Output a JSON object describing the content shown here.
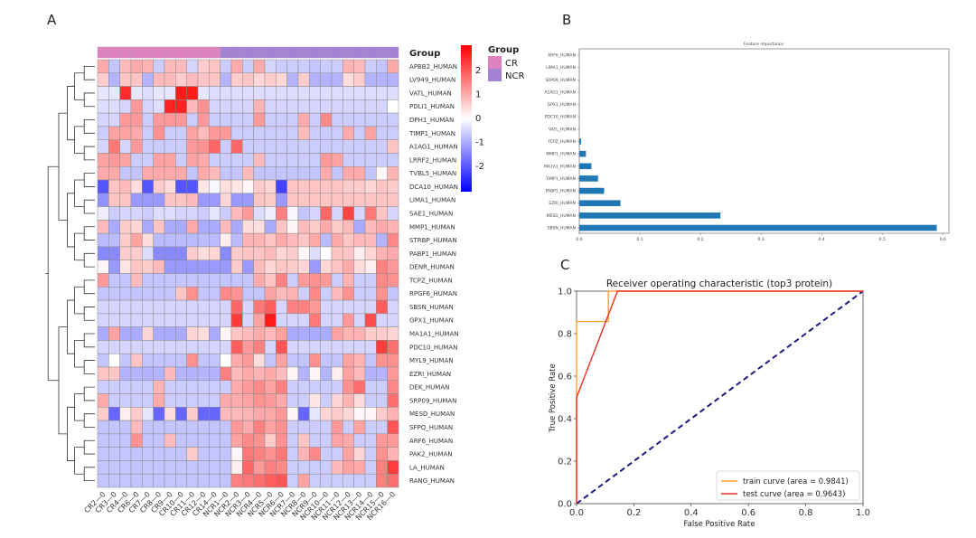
{
  "panels": {
    "a": "A",
    "b": "B",
    "c": "C"
  },
  "chart_data": [
    {
      "type": "heatmap",
      "group_label": "Group",
      "legend": {
        "title": "Group",
        "entries": [
          {
            "name": "CR",
            "color": "#dd82bd"
          },
          {
            "name": "NCR",
            "color": "#a583d3"
          }
        ]
      },
      "colorbar": {
        "ticks": [
          2,
          1,
          0,
          -1,
          -2
        ],
        "low_color": "#0000ff",
        "mid_color": "#ffffff",
        "high_color": "#ff0000"
      },
      "columns": [
        "CR2—0",
        "CR3—0",
        "CR4—0",
        "CR6—0",
        "CR7—0",
        "CR8—0",
        "CR9—0",
        "CR10—0",
        "CR11—0",
        "CR12—0",
        "CR14—0",
        "NCR1—0",
        "NCR2—0",
        "NCR3—0",
        "NCR4—0",
        "NCR5—0",
        "NCR6—0",
        "NCR7—0",
        "NCR8—0",
        "NCR9—0",
        "NCR10—0",
        "NCR11—0",
        "NCR12—0",
        "NCR13—0",
        "NCR14—0",
        "NCR15—0",
        "NCR16—0"
      ],
      "column_groups": [
        "CR",
        "CR",
        "CR",
        "CR",
        "CR",
        "CR",
        "CR",
        "CR",
        "CR",
        "CR",
        "CR",
        "NCR",
        "NCR",
        "NCR",
        "NCR",
        "NCR",
        "NCR",
        "NCR",
        "NCR",
        "NCR",
        "NCR",
        "NCR",
        "NCR",
        "NCR",
        "NCR",
        "NCR",
        "NCR"
      ],
      "rows": [
        "APBB2_HUMAN",
        "LV949_HUMAN",
        "VATL_HUMAN",
        "PDLI1_HUMAN",
        "DPH1_HUMAN",
        "TIMP1_HUMAN",
        "A1AG1_HUMAN",
        "LRRF2_HUMAN",
        "TVBL5_HUMAN",
        "DCA10_HUMAN",
        "LIMA1_HUMAN",
        "SAE1_HUMAN",
        "MMP1_HUMAN",
        "STRBP_HUMAN",
        "PABP1_HUMAN",
        "DENR_HUMAN",
        "TCPZ_HUMAN",
        "RPGF6_HUMAN",
        "SBSN_HUMAN",
        "GPX1_HUMAN",
        "MA1A1_HUMAN",
        "PDC10_HUMAN",
        "MYL9_HUMAN",
        "EZRI_HUMAN",
        "DEK_HUMAN",
        "SRP09_HUMAN",
        "MESD_HUMAN",
        "SFPQ_HUMAN",
        "ARF6_HUMAN",
        "PAK2_HUMAN",
        "LA_HUMAN",
        "RANG_HUMAN"
      ],
      "values": [
        [
          1,
          -0.7,
          0.8,
          1,
          0.9,
          -0.6,
          0.8,
          0.8,
          -0.5,
          0.6,
          0.7,
          -0.6,
          1,
          -0.6,
          1,
          -0.5,
          -0.6,
          -0.6,
          -0.6,
          -0.7,
          -0.6,
          -0.6,
          0.9,
          0.8,
          -0.6,
          -0.7,
          1
        ],
        [
          0.6,
          -0.9,
          0.7,
          0.7,
          -0.9,
          0.8,
          0.8,
          0.6,
          0.8,
          0.7,
          0.7,
          -0.9,
          0.6,
          0.7,
          0.5,
          0.6,
          0.5,
          -0.9,
          0.6,
          -0.9,
          -0.9,
          -0.9,
          0.4,
          0.6,
          -0.9,
          -0.9,
          -0.9
        ],
        [
          -0.3,
          -0.3,
          2.5,
          -0.3,
          -0.4,
          -0.3,
          -0.3,
          2.7,
          2.7,
          -0.3,
          -0.4,
          -0.4,
          -0.4,
          -0.4,
          -0.4,
          -0.4,
          -0.4,
          -0.4,
          -0.4,
          -0.4,
          -0.4,
          -0.4,
          -0.4,
          -0.4,
          -0.4,
          -0.4,
          -0.4
        ],
        [
          -0.4,
          -0.4,
          -0.5,
          1.2,
          -0.5,
          -0.4,
          2.6,
          2.6,
          0.8,
          1.3,
          -0.5,
          -0.5,
          -0.5,
          -0.5,
          0.9,
          -0.5,
          -0.5,
          -0.5,
          -0.5,
          -0.5,
          -0.5,
          -0.5,
          -0.5,
          -0.5,
          -0.5,
          -0.5,
          0
        ],
        [
          -0.5,
          -0.5,
          1.2,
          1.2,
          -0.6,
          1.2,
          1.2,
          1.2,
          -0.6,
          1.2,
          -0.6,
          -0.6,
          -0.6,
          -0.6,
          1.2,
          -0.6,
          -0.6,
          -0.6,
          1,
          -0.6,
          1.4,
          -0.6,
          -0.6,
          -0.6,
          -0.6,
          -0.6,
          -0.6
        ],
        [
          -0.6,
          1.1,
          1.1,
          1,
          -0.6,
          1.3,
          -0.6,
          -0.6,
          1.1,
          0.8,
          1.2,
          1.2,
          -0.6,
          -0.6,
          -0.6,
          -0.6,
          -0.6,
          -0.6,
          0.8,
          -0.6,
          -0.6,
          -0.6,
          1,
          -0.6,
          1.1,
          -0.6,
          -0.6
        ],
        [
          -0.5,
          1.6,
          -0.5,
          1.2,
          -0.6,
          -0.6,
          -0.6,
          -0.6,
          1.2,
          1.3,
          1.8,
          -0.6,
          1.8,
          -0.6,
          -0.6,
          -0.6,
          -0.6,
          -0.6,
          -0.6,
          -0.6,
          -0.6,
          -0.6,
          -0.6,
          -0.6,
          -0.6,
          -0.6,
          0.7
        ],
        [
          1.1,
          1.2,
          1.1,
          -0.6,
          -0.6,
          1.1,
          1.1,
          -0.6,
          1.1,
          1,
          -0.6,
          -0.6,
          -0.6,
          -0.6,
          0.8,
          -0.6,
          -0.6,
          -0.6,
          -0.6,
          -0.6,
          1.2,
          1.1,
          -0.6,
          -0.6,
          -0.6,
          -0.6,
          -0.6
        ],
        [
          1,
          1,
          -0.7,
          -0.7,
          1,
          1,
          1,
          1,
          -0.7,
          1,
          0.8,
          -0.7,
          -0.7,
          0.8,
          -0.7,
          -0.7,
          -0.7,
          -0.7,
          -0.7,
          -0.7,
          1,
          -0.7,
          1,
          1,
          -0.7,
          0.1,
          0.9
        ],
        [
          -2,
          0.7,
          0.8,
          0.4,
          -2,
          0.6,
          0.4,
          -2,
          -2,
          0.3,
          -0.1,
          0.4,
          0.3,
          0.1,
          0.6,
          0.5,
          -2.2,
          0.7,
          0.7,
          0.7,
          0.7,
          0.7,
          0.6,
          0.6,
          0.5,
          0.7,
          0.6
        ],
        [
          -1.3,
          0.7,
          0.7,
          -1.2,
          -1.2,
          -1.2,
          0.7,
          0.7,
          0.8,
          -1.2,
          -1.2,
          0.5,
          -1.2,
          -1.2,
          0.7,
          0.6,
          -1.2,
          0.7,
          0.7,
          0.7,
          0.7,
          0.7,
          0.7,
          0.7,
          0.7,
          0.7,
          0.7
        ],
        [
          -0.2,
          -0.6,
          -0.5,
          -0.5,
          -0.6,
          -0.4,
          -0.4,
          -0.5,
          -0.5,
          -0.6,
          -0.3,
          -0.6,
          0.8,
          1.2,
          -0.4,
          -0.2,
          1.5,
          -0.1,
          -0.7,
          -0.5,
          1.8,
          -0.5,
          2.2,
          -0.5,
          1.6,
          0.7,
          -0.5
        ],
        [
          0.8,
          -1,
          0.6,
          0.5,
          -1,
          0.7,
          -1,
          -1,
          1,
          -1,
          -1,
          0.8,
          -1,
          0.4,
          0.4,
          -1,
          0.7,
          0.1,
          0.8,
          0.6,
          1,
          0.6,
          0.8,
          -1,
          0.8,
          1,
          0.9
        ],
        [
          -0.8,
          -0.8,
          0.6,
          1.1,
          0.4,
          -0.8,
          -0.8,
          -0.8,
          -0.8,
          -0.8,
          -0.8,
          0.2,
          -0.8,
          0.9,
          0.9,
          0.7,
          1,
          0.8,
          0.7,
          1,
          -0.8,
          1,
          0.7,
          0.8,
          0.8,
          -0.9,
          1.4
        ],
        [
          -1.4,
          -1.4,
          0.6,
          0.6,
          -0.4,
          -1.4,
          -1.4,
          -1.4,
          0.6,
          0.4,
          0.5,
          -1.4,
          0.6,
          0.7,
          0.7,
          0.8,
          0.5,
          0.6,
          0.1,
          -0.4,
          0,
          0.7,
          0.7,
          0.2,
          0.5,
          0.9,
          1
        ],
        [
          0.1,
          -1.2,
          0.3,
          0.7,
          0.6,
          0.8,
          -1.2,
          -1.2,
          -1.2,
          -1.2,
          -1.2,
          -1.2,
          0.6,
          -1.2,
          0.8,
          0.5,
          0.7,
          0.6,
          0.5,
          -1.2,
          0.5,
          0.7,
          1,
          0.4,
          0.2,
          1.5,
          1.2
        ],
        [
          1.2,
          -0.7,
          -0.7,
          0.8,
          -0.7,
          -0.7,
          -0.7,
          -0.7,
          -0.7,
          -0.7,
          -0.7,
          -0.7,
          -0.7,
          -0.7,
          1,
          0.7,
          1.5,
          -0.6,
          1.2,
          1.3,
          1.2,
          -0.6,
          0.9,
          -0.6,
          -0.6,
          1.4,
          1.3
        ],
        [
          -0.7,
          -0.7,
          -0.7,
          -0.7,
          -0.7,
          -0.7,
          -0.7,
          0.7,
          1.3,
          -0.7,
          -0.7,
          1.4,
          1.3,
          -0.7,
          -0.7,
          1.1,
          0.8,
          0.9,
          -0.6,
          1.4,
          -0.6,
          0.8,
          1.3,
          -0.6,
          -0.6,
          1.3,
          -0.7
        ],
        [
          -0.5,
          -0.5,
          -0.5,
          -0.5,
          -0.5,
          -0.5,
          -0.5,
          -0.5,
          -0.5,
          -0.5,
          -0.5,
          -0.5,
          1.8,
          -0.5,
          1.6,
          1.9,
          -0.5,
          1.5,
          1.5,
          1.2,
          -0.5,
          -0.5,
          -0.5,
          -0.5,
          -0.5,
          1.9,
          -0.5
        ],
        [
          -0.5,
          -0.5,
          -0.5,
          -0.5,
          -0.5,
          -0.5,
          -0.5,
          -0.5,
          -0.5,
          -0.5,
          -0.5,
          -0.5,
          2.3,
          -0.5,
          1.1,
          2.7,
          -0.5,
          -0.5,
          -0.5,
          1.6,
          -0.5,
          -0.5,
          1.2,
          -0.5,
          2.1,
          -0.5,
          -0.5
        ],
        [
          -1,
          1.1,
          -1,
          -1,
          0.5,
          -1,
          -1,
          -1,
          0.5,
          0.4,
          -1,
          0.1,
          0.7,
          0.8,
          1,
          0.8,
          1.1,
          -1,
          -1,
          -1,
          -1,
          1.1,
          0.9,
          0.9,
          0.6,
          0.6,
          0.5
        ],
        [
          -0.5,
          -0.5,
          -0.5,
          -0.5,
          -0.5,
          -0.5,
          -0.5,
          -0.5,
          -0.5,
          -0.5,
          -0.5,
          -0.5,
          1.9,
          1.2,
          1.5,
          -0.5,
          2,
          -0.5,
          -0.5,
          -0.5,
          -0.5,
          -0.5,
          -0.5,
          -0.5,
          -0.5,
          2.3,
          1.7
        ],
        [
          -0.7,
          0,
          -0.7,
          0.7,
          -0.7,
          -0.7,
          -0.7,
          -0.7,
          1.3,
          -0.7,
          -0.7,
          0,
          1,
          1.2,
          0.4,
          -0.7,
          1.1,
          -0.7,
          -0.7,
          1.3,
          -0.7,
          -0.7,
          1.1,
          0.9,
          -0.7,
          1.3,
          1.3
        ],
        [
          0.7,
          0.7,
          -0.9,
          -0.9,
          -0.9,
          -0.9,
          0.8,
          -0.9,
          -0.9,
          -0.9,
          -0.9,
          1.5,
          0.8,
          1,
          0.9,
          1,
          0.8,
          0.1,
          -0.9,
          0.1,
          -0.9,
          0.2,
          1.1,
          0.8,
          -0.9,
          -0.9,
          1.2
        ],
        [
          -0.6,
          -0.6,
          -0.6,
          -0.6,
          -0.6,
          0.9,
          -0.6,
          -0.6,
          -0.6,
          -0.6,
          -0.6,
          -0.6,
          1,
          1.2,
          1.4,
          1.1,
          1.5,
          -0.6,
          -0.6,
          -0.6,
          -0.6,
          -0.6,
          1.3,
          1.7,
          -0.6,
          -0.6,
          1.4
        ],
        [
          1,
          -0.6,
          -0.6,
          -0.6,
          -0.6,
          1,
          -0.6,
          -0.6,
          -0.6,
          -0.6,
          -0.6,
          1,
          1,
          1.1,
          1.3,
          1.2,
          1,
          -0.6,
          -0.6,
          0.3,
          -0.6,
          0.5,
          0.9,
          0.4,
          -0.6,
          -0.6,
          1.7
        ],
        [
          0.6,
          -1.8,
          0.2,
          0.6,
          -0.3,
          -1.8,
          0.4,
          -1.8,
          0.6,
          -1.8,
          -1.8,
          0.8,
          0.8,
          0.9,
          1,
          1,
          1.2,
          0.1,
          -1.8,
          -0.3,
          0.5,
          0.6,
          0.5,
          0.1,
          0.1,
          0.6,
          0.9
        ],
        [
          -0.7,
          -0.7,
          -0.7,
          0.8,
          -0.7,
          -0.7,
          -0.7,
          -0.7,
          -0.7,
          -0.7,
          -0.7,
          -0.7,
          1.2,
          1,
          1.5,
          1.1,
          1.3,
          -0.6,
          -0.6,
          -0.6,
          -0.6,
          1.2,
          -0.6,
          1.1,
          -0.6,
          -0.6,
          2
        ],
        [
          -0.7,
          -0.7,
          -0.7,
          1.3,
          -0.7,
          -0.7,
          0.8,
          -0.7,
          -0.7,
          -0.7,
          -0.7,
          -0.7,
          1.1,
          1.4,
          1.3,
          0.6,
          1.3,
          -0.6,
          0.7,
          -0.6,
          -0.6,
          1.1,
          1,
          -0.6,
          -0.6,
          1.2,
          1.2
        ],
        [
          -0.7,
          -0.7,
          -0.7,
          -0.7,
          -0.7,
          -0.7,
          -0.7,
          -0.7,
          0.6,
          -0.7,
          -0.7,
          -0.7,
          0.1,
          1.6,
          1.5,
          1.3,
          1.6,
          -0.6,
          0.9,
          1.4,
          -0.6,
          -0.6,
          1.1,
          0.5,
          -0.6,
          1.3,
          0.9
        ],
        [
          -0.7,
          -0.7,
          -0.7,
          -0.7,
          -0.7,
          -0.7,
          -0.7,
          -0.7,
          -0.7,
          -0.7,
          -0.7,
          -0.7,
          0.2,
          1.8,
          1.2,
          1.5,
          1.4,
          -0.6,
          -0.6,
          -0.6,
          -0.6,
          0.8,
          1.1,
          1,
          -0.6,
          1.5,
          2.3
        ],
        [
          -0.7,
          -0.7,
          -0.7,
          -0.7,
          -0.7,
          -0.7,
          -0.7,
          -0.7,
          -0.7,
          -0.7,
          -0.7,
          -0.7,
          1.5,
          1.6,
          1.7,
          1.9,
          2,
          -0.6,
          1.1,
          -0.6,
          -0.6,
          -0.6,
          -0.6,
          -0.6,
          -0.6,
          1.5,
          1.7
        ]
      ]
    },
    {
      "type": "bar",
      "orientation": "horizontal",
      "title": "Feature importance",
      "categories": [
        "ARF6_HUMAN",
        "LIMA1_HUMAN",
        "SRP09_HUMAN",
        "A1AG1_HUMAN",
        "GPX1_HUMAN",
        "PDC10_HUMAN",
        "VATL_HUMAN",
        "TCPZ_HUMAN",
        "MMP1_HUMAN",
        "MA1A1_HUMAN",
        "TIMP1_HUMAN",
        "PABP1_HUMAN",
        "EZRI_HUMAN",
        "MESD_HUMAN",
        "SBSN_HUMAN"
      ],
      "values": [
        0,
        0,
        0,
        0,
        0,
        0,
        0,
        0.003,
        0.011,
        0.02,
        0.031,
        0.041,
        0.068,
        0.233,
        0.59
      ],
      "xticks": [
        "0.0",
        "0.1",
        "0.2",
        "0.3",
        "0.4",
        "0.5",
        "0.6"
      ],
      "xlim": [
        0,
        0.61
      ],
      "color": "#1f77b4"
    },
    {
      "type": "line",
      "title": "Receiver operating characteristic (top3 protein)",
      "xlabel": "False Positive Rate",
      "ylabel": "True Positive Rate",
      "xlim": [
        0,
        1
      ],
      "ylim": [
        0,
        1
      ],
      "xticks": [
        "0.0",
        "0.2",
        "0.4",
        "0.6",
        "0.8",
        "1.0"
      ],
      "yticks": [
        "0.0",
        "0.2",
        "0.4",
        "0.6",
        "0.8",
        "1.0"
      ],
      "legend_position": "lower-right",
      "series": [
        {
          "name": "train curve (area = 0.9841)",
          "color": "#ffa030",
          "x": [
            0,
            0,
            0.111,
            0.111,
            1
          ],
          "y": [
            0,
            0.857,
            0.857,
            1,
            1
          ]
        },
        {
          "name": "test curve (area = 0.9643)",
          "color": "#e8302a",
          "x": [
            0,
            0,
            0.143,
            1
          ],
          "y": [
            0,
            0.5,
            1,
            1
          ]
        }
      ],
      "reference_line": {
        "x": [
          0,
          1
        ],
        "y": [
          0,
          1
        ],
        "color": "#1a1a80",
        "style": "dashed"
      }
    }
  ]
}
